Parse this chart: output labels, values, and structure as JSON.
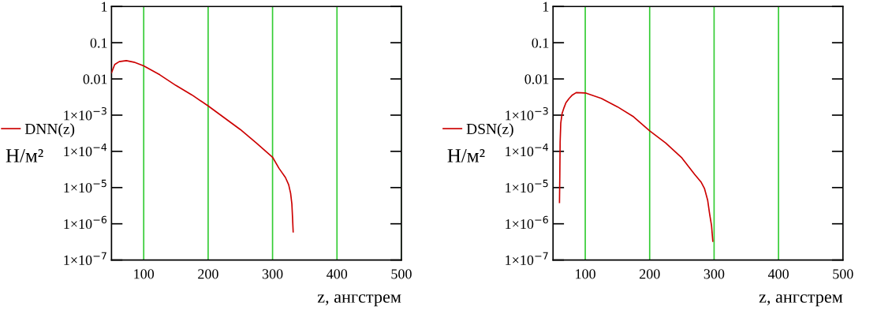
{
  "chart_data": [
    {
      "type": "line",
      "xlabel": "z, ангстрем",
      "ylabel": "Н/м²",
      "log": "y",
      "grid": "x",
      "legend": "left",
      "xlim": [
        50,
        500
      ],
      "xticks": [
        100,
        200,
        300,
        400,
        500
      ],
      "ylim": [
        1e-07,
        1
      ],
      "yticks": [
        1,
        0.1,
        0.01,
        {
          "value": 0.001,
          "label": "1×10$^{−3}$"
        },
        {
          "value": 0.0001,
          "label": "1×10$^{−4}$"
        },
        {
          "value": 1e-05,
          "label": "1×10$^{−5}$"
        },
        {
          "value": 1e-06,
          "label": "1×10$^{−6}$"
        },
        {
          "value": 1e-07,
          "label": "1×10$^{−7}$"
        }
      ],
      "series": [
        {
          "name": "DNN(z)",
          "color": "#cc0000",
          "x": [
            50,
            55,
            62,
            73,
            85,
            100,
            125,
            150,
            175,
            200,
            225,
            250,
            275,
            300,
            310,
            320,
            325,
            328,
            330,
            331,
            332
          ],
          "values": [
            0.0148,
            0.025,
            0.03,
            0.032,
            0.029,
            0.023,
            0.013,
            0.0066,
            0.0036,
            0.0018,
            0.00085,
            0.0004,
            0.00017,
            6.9e-05,
            3.4e-05,
            1.9e-05,
            1.2e-05,
            7e-06,
            3.5e-06,
            1.5e-06,
            6e-07
          ]
        }
      ]
    },
    {
      "type": "line",
      "xlabel": "z, ангстрем",
      "ylabel": "Н/м²",
      "log": "y",
      "grid": "x",
      "legend": "left",
      "xlim": [
        50,
        500
      ],
      "xticks": [
        100,
        200,
        300,
        400,
        500
      ],
      "ylim": [
        1e-07,
        1
      ],
      "yticks": [
        1,
        0.1,
        0.01,
        {
          "value": 0.001,
          "label": "1×10$^{−3}$"
        },
        {
          "value": 0.0001,
          "label": "1×10$^{−4}$"
        },
        {
          "value": 1e-05,
          "label": "1×10$^{−5}$"
        },
        {
          "value": 1e-06,
          "label": "1×10$^{−6}$"
        },
        {
          "value": 1e-07,
          "label": "1×10$^{−7}$"
        }
      ],
      "series": [
        {
          "name": "DSN(z)",
          "color": "#cc0000",
          "x": [
            60,
            60.5,
            61,
            62,
            64,
            67,
            70,
            75,
            80,
            86,
            100,
            125,
            150,
            175,
            200,
            225,
            250,
            270,
            280,
            285,
            290,
            293,
            296,
            298
          ],
          "values": [
            3.9e-06,
            2e-05,
            0.00018,
            0.0006,
            0.0011,
            0.0016,
            0.0022,
            0.0029,
            0.0036,
            0.0042,
            0.0041,
            0.0029,
            0.0017,
            0.0009,
            0.00037,
            0.00017,
            6.6e-05,
            2.3e-05,
            1.4e-05,
            9.5e-06,
            4.5e-06,
            1.9e-06,
            9e-07,
            3.3e-07
          ]
        }
      ]
    }
  ]
}
